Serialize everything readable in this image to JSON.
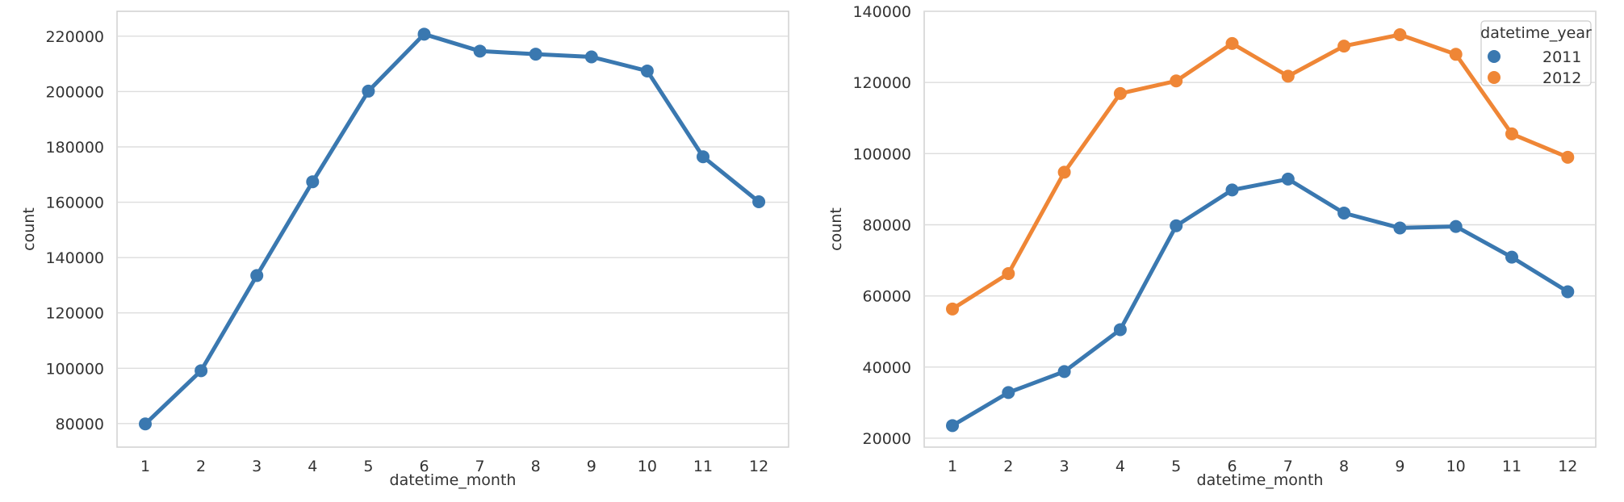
{
  "chart_data": [
    {
      "type": "line",
      "xlabel": "datetime_month",
      "ylabel": "count",
      "categories": [
        "1",
        "2",
        "3",
        "4",
        "5",
        "6",
        "7",
        "8",
        "9",
        "10",
        "11",
        "12"
      ],
      "yticks": [
        80000,
        100000,
        120000,
        140000,
        160000,
        180000,
        200000,
        220000
      ],
      "ylim": [
        71500,
        229000
      ],
      "grid": "horizontal",
      "series": [
        {
          "color": "#3a78b0",
          "values": [
            79884,
            99113,
            133501,
            167402,
            200147,
            220733,
            214617,
            213516,
            212529,
            207434,
            176440,
            160160
          ]
        }
      ]
    },
    {
      "type": "line",
      "xlabel": "datetime_month",
      "ylabel": "count",
      "categories": [
        "1",
        "2",
        "3",
        "4",
        "5",
        "6",
        "7",
        "8",
        "9",
        "10",
        "11",
        "12"
      ],
      "yticks": [
        20000,
        40000,
        60000,
        80000,
        100000,
        120000,
        140000
      ],
      "ylim": [
        17500,
        140000
      ],
      "grid": "horizontal",
      "legend": {
        "title": "datetime_year",
        "placement": "top-right"
      },
      "series": [
        {
          "name": "2011",
          "color": "#3a78b0",
          "values": [
            23552,
            32844,
            38735,
            50517,
            79713,
            89776,
            92848,
            83296,
            79104,
            79522,
            70889,
            61183
          ]
        },
        {
          "name": "2012",
          "color": "#ef8636",
          "values": [
            56332,
            66269,
            94766,
            116885,
            120434,
            130957,
            121769,
            130220,
            133425,
            127912,
            105551,
            98977
          ]
        }
      ]
    }
  ]
}
